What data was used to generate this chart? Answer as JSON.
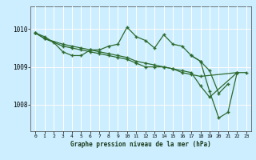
{
  "background_color": "#cceeff",
  "plot_bg_color": "#cceeff",
  "grid_color": "#ffffff",
  "red_line_color": "#dd4444",
  "line_color": "#2d6a2d",
  "xlabel": "Graphe pression niveau de la mer (hPa)",
  "yticks": [
    1008,
    1009,
    1010
  ],
  "xticks": [
    0,
    1,
    2,
    3,
    4,
    5,
    6,
    7,
    8,
    9,
    10,
    11,
    12,
    13,
    14,
    15,
    16,
    17,
    18,
    19,
    20,
    21,
    22,
    23
  ],
  "ylim": [
    1007.3,
    1010.6
  ],
  "xlim": [
    -0.5,
    23.5
  ],
  "s1_x": [
    0,
    1,
    3,
    4,
    5,
    6,
    7,
    8,
    9,
    10,
    11,
    12,
    13,
    14,
    15,
    16,
    17,
    18,
    22
  ],
  "s1_y": [
    1009.9,
    1009.75,
    1009.6,
    1009.55,
    1009.5,
    1009.45,
    1009.4,
    1009.35,
    1009.3,
    1009.25,
    1009.15,
    1009.1,
    1009.05,
    1009.0,
    1008.95,
    1008.85,
    1008.8,
    1008.75,
    1008.85
  ],
  "s2_x": [
    0,
    1,
    3,
    4,
    5,
    6,
    7,
    8,
    9,
    10,
    11,
    12,
    13,
    14,
    15,
    16,
    17,
    18,
    19,
    22
  ],
  "s2_y": [
    1009.9,
    1009.75,
    1009.55,
    1009.5,
    1009.45,
    1009.4,
    1009.35,
    1009.3,
    1009.25,
    1009.2,
    1009.1,
    1009.0,
    1009.0,
    1009.0,
    1008.95,
    1008.9,
    1008.85,
    1008.5,
    1008.2,
    1008.85
  ],
  "s3_x": [
    0,
    1,
    2,
    3,
    4,
    5,
    6,
    7,
    8,
    9,
    10,
    11,
    12,
    13,
    14,
    15,
    16,
    17,
    18,
    19,
    20,
    21
  ],
  "s3_y": [
    1009.9,
    1009.8,
    1009.65,
    1009.4,
    1009.3,
    1009.3,
    1009.45,
    1009.45,
    1009.55,
    1009.6,
    1010.05,
    1009.8,
    1009.7,
    1009.5,
    1009.85,
    1009.6,
    1009.55,
    1009.3,
    1009.15,
    1008.9,
    1008.3,
    1008.55
  ],
  "s4_x": [
    17,
    18,
    19,
    20,
    21,
    22,
    23
  ],
  "s4_y": [
    1009.3,
    1009.15,
    1008.35,
    1007.65,
    1007.8,
    1008.85,
    1008.85
  ]
}
